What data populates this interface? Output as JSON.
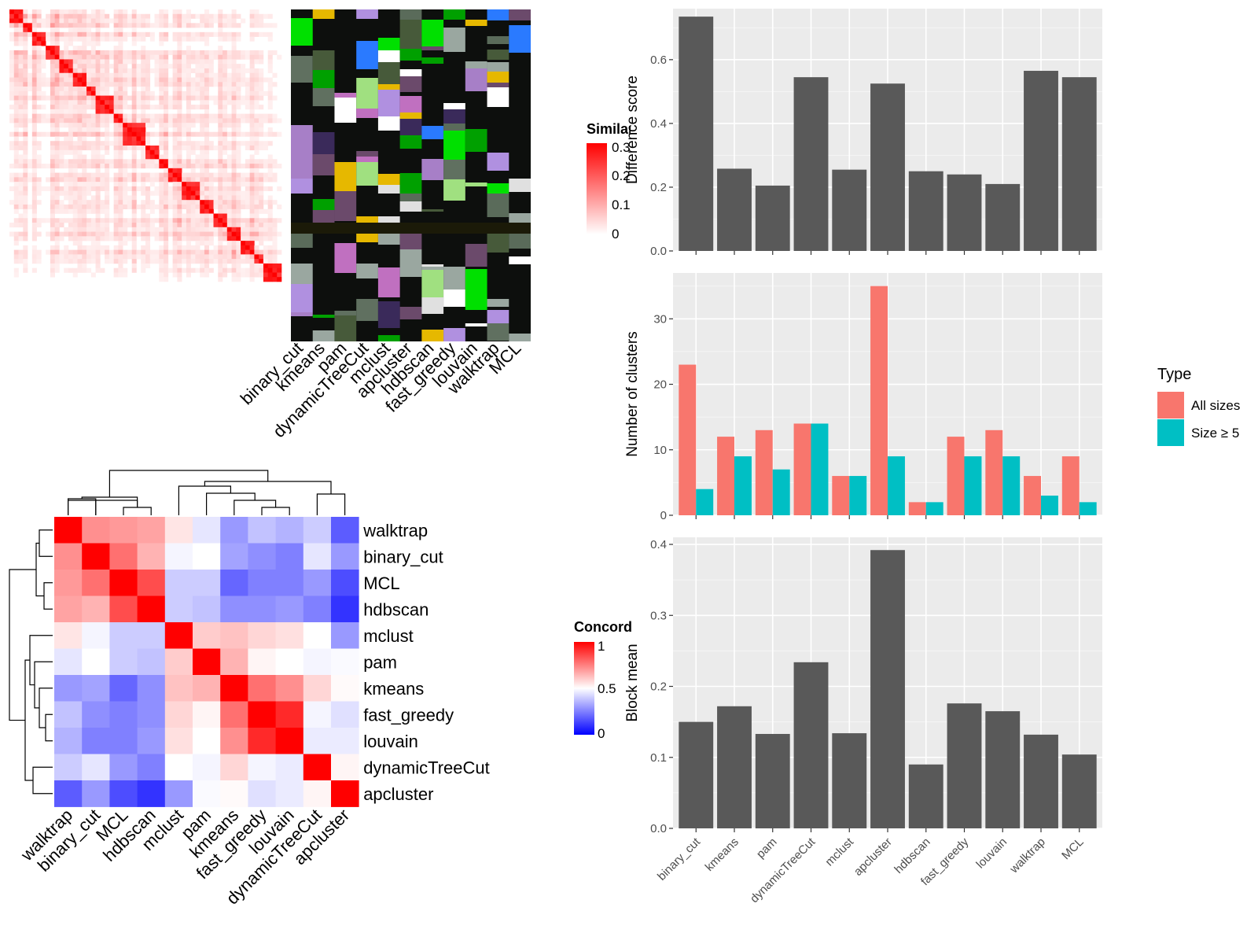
{
  "chart_data": [
    {
      "type": "heatmap",
      "title": "",
      "legend": {
        "title": "Similarity",
        "ticks": [
          "0.3",
          "0.2",
          "0.1",
          "0"
        ],
        "range": [
          0,
          0.3
        ],
        "colors": [
          "#ffffff",
          "#ff0000"
        ]
      },
      "n_terms": 120,
      "clustering_methods": [
        "binary_cut",
        "kmeans",
        "pam",
        "dynamicTreeCut",
        "mclust",
        "apcluster",
        "hdbscan",
        "fast_greedy",
        "louvain",
        "walktrap",
        "MCL"
      ],
      "block_sizes_along_diagonal": [
        6,
        4,
        5,
        7,
        6,
        5,
        4,
        8,
        5,
        9,
        6,
        4,
        7,
        8,
        6,
        5,
        7,
        6,
        4,
        8
      ]
    },
    {
      "type": "heatmap",
      "title": "",
      "legend": {
        "title": "Concordance",
        "ticks": [
          "1",
          "0.5",
          "0"
        ],
        "range": [
          0,
          1
        ],
        "colors": [
          "#0000ff",
          "#ffffff",
          "#ff0000"
        ]
      },
      "rows": [
        "walktrap",
        "binary_cut",
        "MCL",
        "hdbscan",
        "mclust",
        "pam",
        "kmeans",
        "fast_greedy",
        "louvain",
        "dynamicTreeCut",
        "apcluster"
      ],
      "columns": [
        "walktrap",
        "binary_cut",
        "MCL",
        "hdbscan",
        "mclust",
        "pam",
        "kmeans",
        "fast_greedy",
        "louvain",
        "dynamicTreeCut",
        "apcluster"
      ],
      "values": [
        [
          1.0,
          0.72,
          0.7,
          0.68,
          0.55,
          0.45,
          0.3,
          0.38,
          0.35,
          0.4,
          0.18
        ],
        [
          0.72,
          1.0,
          0.78,
          0.65,
          0.48,
          0.5,
          0.32,
          0.28,
          0.25,
          0.45,
          0.3
        ],
        [
          0.7,
          0.78,
          1.0,
          0.85,
          0.4,
          0.4,
          0.2,
          0.25,
          0.25,
          0.3,
          0.15
        ],
        [
          0.68,
          0.65,
          0.85,
          1.0,
          0.4,
          0.38,
          0.28,
          0.28,
          0.3,
          0.25,
          0.1
        ],
        [
          0.55,
          0.48,
          0.4,
          0.4,
          1.0,
          0.6,
          0.62,
          0.58,
          0.56,
          0.5,
          0.3
        ],
        [
          0.45,
          0.5,
          0.4,
          0.38,
          0.6,
          1.0,
          0.65,
          0.52,
          0.5,
          0.48,
          0.49
        ],
        [
          0.3,
          0.32,
          0.2,
          0.28,
          0.62,
          0.65,
          1.0,
          0.78,
          0.72,
          0.58,
          0.51
        ],
        [
          0.38,
          0.28,
          0.25,
          0.28,
          0.58,
          0.52,
          0.78,
          1.0,
          0.92,
          0.48,
          0.44
        ],
        [
          0.35,
          0.25,
          0.25,
          0.3,
          0.56,
          0.5,
          0.72,
          0.92,
          1.0,
          0.46,
          0.46
        ],
        [
          0.4,
          0.45,
          0.3,
          0.25,
          0.5,
          0.48,
          0.58,
          0.48,
          0.46,
          1.0,
          0.52
        ],
        [
          0.18,
          0.3,
          0.15,
          0.1,
          0.3,
          0.49,
          0.51,
          0.44,
          0.46,
          0.52,
          1.0
        ]
      ]
    },
    {
      "type": "bar",
      "title": "",
      "xlabel": "",
      "ylabel": "Difference score",
      "categories": [
        "binary_cut",
        "kmeans",
        "pam",
        "dynamicTreeCut",
        "mclust",
        "apcluster",
        "hdbscan",
        "fast_greedy",
        "louvain",
        "walktrap",
        "MCL"
      ],
      "values": [
        0.735,
        0.258,
        0.205,
        0.545,
        0.255,
        0.525,
        0.25,
        0.24,
        0.21,
        0.565,
        0.545
      ],
      "ylim": [
        0,
        0.76
      ],
      "yticks": [
        "0.0",
        "0.2",
        "0.4",
        "0.6"
      ],
      "grid": true,
      "color": "#595959"
    },
    {
      "type": "bar",
      "title": "",
      "xlabel": "",
      "ylabel": "Number of clusters",
      "categories": [
        "binary_cut",
        "kmeans",
        "pam",
        "dynamicTreeCut",
        "mclust",
        "apcluster",
        "hdbscan",
        "fast_greedy",
        "louvain",
        "walktrap",
        "MCL"
      ],
      "series": [
        {
          "name": "All sizes",
          "values": [
            23,
            12,
            13,
            14,
            6,
            35,
            2,
            12,
            13,
            6,
            9
          ],
          "color": "#f8766d"
        },
        {
          "name": "Size ≥ 5",
          "values": [
            4,
            9,
            7,
            14,
            6,
            9,
            2,
            9,
            9,
            3,
            2
          ],
          "color": "#00bfc4"
        }
      ],
      "ylim": [
        0,
        37
      ],
      "yticks": [
        "0",
        "10",
        "20",
        "30"
      ],
      "legend": {
        "title": "Type",
        "position": "right"
      },
      "grid": true
    },
    {
      "type": "bar",
      "title": "",
      "xlabel": "",
      "ylabel": "Block mean",
      "categories": [
        "binary_cut",
        "kmeans",
        "pam",
        "dynamicTreeCut",
        "mclust",
        "apcluster",
        "hdbscan",
        "fast_greedy",
        "louvain",
        "walktrap",
        "MCL"
      ],
      "values": [
        0.15,
        0.172,
        0.133,
        0.234,
        0.134,
        0.392,
        0.09,
        0.176,
        0.165,
        0.132,
        0.104
      ],
      "ylim": [
        0,
        0.41
      ],
      "yticks": [
        "0.0",
        "0.1",
        "0.2",
        "0.3",
        "0.4"
      ],
      "grid": true,
      "color": "#595959"
    }
  ]
}
